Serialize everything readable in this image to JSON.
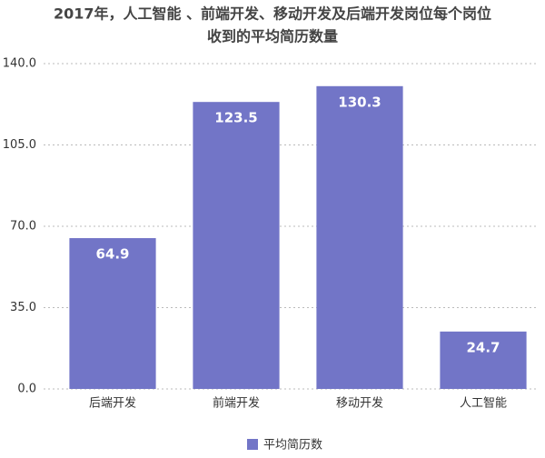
{
  "chart_data": {
    "type": "bar",
    "title": [
      "2017年，人工智能 、前端开发、移动开发及后端开发岗位每个岗位",
      "收到的平均简历数量"
    ],
    "categories": [
      "后端开发",
      "前端开发",
      "移动开发",
      "人工智能"
    ],
    "series": [
      {
        "name": "平均简历数",
        "color": "#7275c7",
        "values": [
          64.9,
          123.5,
          130.3,
          24.7
        ]
      }
    ],
    "ylim": [
      0,
      140
    ],
    "yticks": [
      {
        "value": 0,
        "label": "0.0"
      },
      {
        "value": 35,
        "label": "35.0"
      },
      {
        "value": 70,
        "label": "70.0"
      },
      {
        "value": 105,
        "label": "105.0"
      },
      {
        "value": 140,
        "label": "140.0"
      }
    ],
    "grid": true,
    "legend": "bottom"
  }
}
